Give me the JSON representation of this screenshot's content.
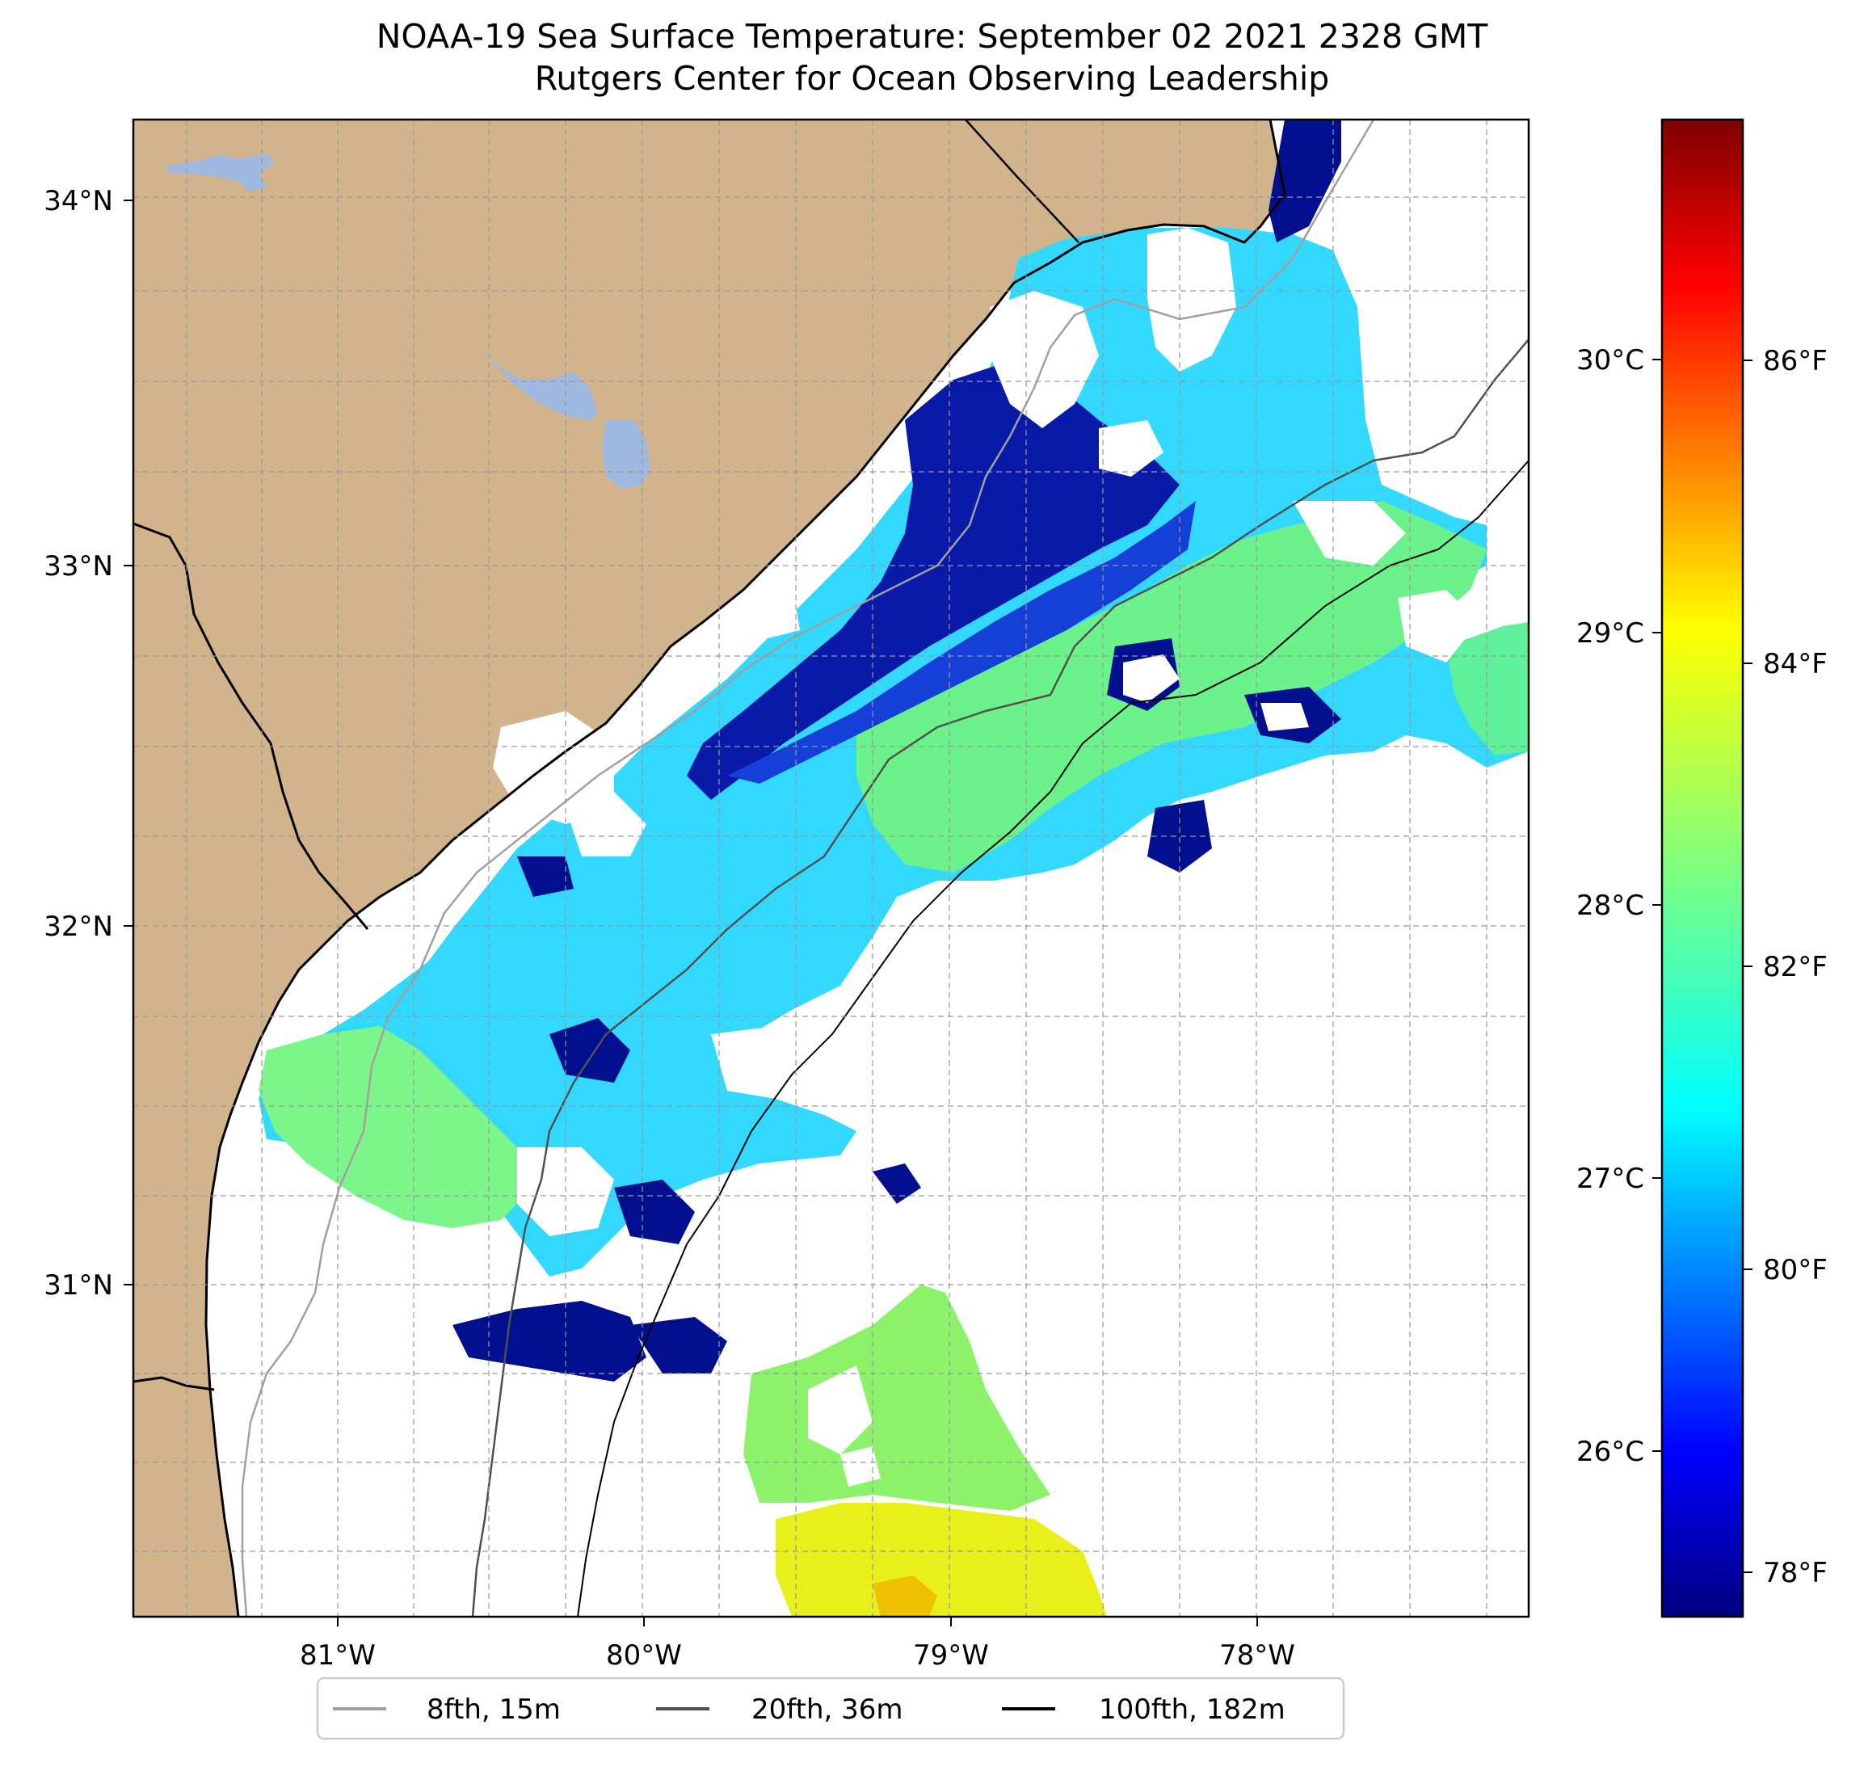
{
  "title": {
    "line1": "NOAA-19 Sea Surface Temperature: September 02 2021 2328 GMT",
    "line2": "Rutgers Center for Ocean Observing Leadership"
  },
  "map": {
    "lat_labels": [
      "34°N",
      "33°N",
      "32°N",
      "31°N"
    ],
    "lon_labels": [
      "81°W",
      "80°W",
      "79°W",
      "78°W"
    ],
    "colors": {
      "land": "#d2b48c",
      "lake": "#9fb8e0",
      "ocean_nodata": "#ffffff",
      "coastline": "#000000"
    }
  },
  "colorbar": {
    "celsius_labels": [
      "30°C",
      "29°C",
      "28°C",
      "27°C",
      "26°C"
    ],
    "fahrenheit_labels": [
      "86°F",
      "84°F",
      "82°F",
      "80°F",
      "78°F"
    ],
    "colormap": "jet"
  },
  "legend": {
    "items": [
      {
        "label": "8fth, 15m",
        "color": "#a0a0a0"
      },
      {
        "label": "20fth, 36m",
        "color": "#505050"
      },
      {
        "label": "100fth, 182m",
        "color": "#000000"
      }
    ]
  }
}
